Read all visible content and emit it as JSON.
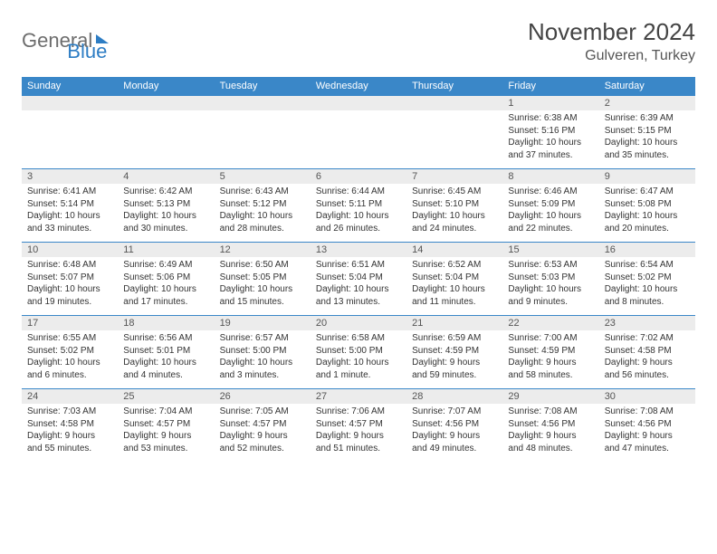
{
  "logo": {
    "word1": "General",
    "word2": "Blue"
  },
  "header": {
    "title": "November 2024",
    "location": "Gulveren, Turkey"
  },
  "days": [
    "Sunday",
    "Monday",
    "Tuesday",
    "Wednesday",
    "Thursday",
    "Friday",
    "Saturday"
  ],
  "style": {
    "header_bg": "#3a87c8",
    "header_text": "#ffffff",
    "daynum_bg": "#ececec",
    "font_small": 10,
    "font_daynum": 11
  },
  "weeks": [
    [
      {
        "n": "",
        "sr": "",
        "ss": "",
        "dl": ""
      },
      {
        "n": "",
        "sr": "",
        "ss": "",
        "dl": ""
      },
      {
        "n": "",
        "sr": "",
        "ss": "",
        "dl": ""
      },
      {
        "n": "",
        "sr": "",
        "ss": "",
        "dl": ""
      },
      {
        "n": "",
        "sr": "",
        "ss": "",
        "dl": ""
      },
      {
        "n": "1",
        "sr": "Sunrise: 6:38 AM",
        "ss": "Sunset: 5:16 PM",
        "dl": "Daylight: 10 hours and 37 minutes."
      },
      {
        "n": "2",
        "sr": "Sunrise: 6:39 AM",
        "ss": "Sunset: 5:15 PM",
        "dl": "Daylight: 10 hours and 35 minutes."
      }
    ],
    [
      {
        "n": "3",
        "sr": "Sunrise: 6:41 AM",
        "ss": "Sunset: 5:14 PM",
        "dl": "Daylight: 10 hours and 33 minutes."
      },
      {
        "n": "4",
        "sr": "Sunrise: 6:42 AM",
        "ss": "Sunset: 5:13 PM",
        "dl": "Daylight: 10 hours and 30 minutes."
      },
      {
        "n": "5",
        "sr": "Sunrise: 6:43 AM",
        "ss": "Sunset: 5:12 PM",
        "dl": "Daylight: 10 hours and 28 minutes."
      },
      {
        "n": "6",
        "sr": "Sunrise: 6:44 AM",
        "ss": "Sunset: 5:11 PM",
        "dl": "Daylight: 10 hours and 26 minutes."
      },
      {
        "n": "7",
        "sr": "Sunrise: 6:45 AM",
        "ss": "Sunset: 5:10 PM",
        "dl": "Daylight: 10 hours and 24 minutes."
      },
      {
        "n": "8",
        "sr": "Sunrise: 6:46 AM",
        "ss": "Sunset: 5:09 PM",
        "dl": "Daylight: 10 hours and 22 minutes."
      },
      {
        "n": "9",
        "sr": "Sunrise: 6:47 AM",
        "ss": "Sunset: 5:08 PM",
        "dl": "Daylight: 10 hours and 20 minutes."
      }
    ],
    [
      {
        "n": "10",
        "sr": "Sunrise: 6:48 AM",
        "ss": "Sunset: 5:07 PM",
        "dl": "Daylight: 10 hours and 19 minutes."
      },
      {
        "n": "11",
        "sr": "Sunrise: 6:49 AM",
        "ss": "Sunset: 5:06 PM",
        "dl": "Daylight: 10 hours and 17 minutes."
      },
      {
        "n": "12",
        "sr": "Sunrise: 6:50 AM",
        "ss": "Sunset: 5:05 PM",
        "dl": "Daylight: 10 hours and 15 minutes."
      },
      {
        "n": "13",
        "sr": "Sunrise: 6:51 AM",
        "ss": "Sunset: 5:04 PM",
        "dl": "Daylight: 10 hours and 13 minutes."
      },
      {
        "n": "14",
        "sr": "Sunrise: 6:52 AM",
        "ss": "Sunset: 5:04 PM",
        "dl": "Daylight: 10 hours and 11 minutes."
      },
      {
        "n": "15",
        "sr": "Sunrise: 6:53 AM",
        "ss": "Sunset: 5:03 PM",
        "dl": "Daylight: 10 hours and 9 minutes."
      },
      {
        "n": "16",
        "sr": "Sunrise: 6:54 AM",
        "ss": "Sunset: 5:02 PM",
        "dl": "Daylight: 10 hours and 8 minutes."
      }
    ],
    [
      {
        "n": "17",
        "sr": "Sunrise: 6:55 AM",
        "ss": "Sunset: 5:02 PM",
        "dl": "Daylight: 10 hours and 6 minutes."
      },
      {
        "n": "18",
        "sr": "Sunrise: 6:56 AM",
        "ss": "Sunset: 5:01 PM",
        "dl": "Daylight: 10 hours and 4 minutes."
      },
      {
        "n": "19",
        "sr": "Sunrise: 6:57 AM",
        "ss": "Sunset: 5:00 PM",
        "dl": "Daylight: 10 hours and 3 minutes."
      },
      {
        "n": "20",
        "sr": "Sunrise: 6:58 AM",
        "ss": "Sunset: 5:00 PM",
        "dl": "Daylight: 10 hours and 1 minute."
      },
      {
        "n": "21",
        "sr": "Sunrise: 6:59 AM",
        "ss": "Sunset: 4:59 PM",
        "dl": "Daylight: 9 hours and 59 minutes."
      },
      {
        "n": "22",
        "sr": "Sunrise: 7:00 AM",
        "ss": "Sunset: 4:59 PM",
        "dl": "Daylight: 9 hours and 58 minutes."
      },
      {
        "n": "23",
        "sr": "Sunrise: 7:02 AM",
        "ss": "Sunset: 4:58 PM",
        "dl": "Daylight: 9 hours and 56 minutes."
      }
    ],
    [
      {
        "n": "24",
        "sr": "Sunrise: 7:03 AM",
        "ss": "Sunset: 4:58 PM",
        "dl": "Daylight: 9 hours and 55 minutes."
      },
      {
        "n": "25",
        "sr": "Sunrise: 7:04 AM",
        "ss": "Sunset: 4:57 PM",
        "dl": "Daylight: 9 hours and 53 minutes."
      },
      {
        "n": "26",
        "sr": "Sunrise: 7:05 AM",
        "ss": "Sunset: 4:57 PM",
        "dl": "Daylight: 9 hours and 52 minutes."
      },
      {
        "n": "27",
        "sr": "Sunrise: 7:06 AM",
        "ss": "Sunset: 4:57 PM",
        "dl": "Daylight: 9 hours and 51 minutes."
      },
      {
        "n": "28",
        "sr": "Sunrise: 7:07 AM",
        "ss": "Sunset: 4:56 PM",
        "dl": "Daylight: 9 hours and 49 minutes."
      },
      {
        "n": "29",
        "sr": "Sunrise: 7:08 AM",
        "ss": "Sunset: 4:56 PM",
        "dl": "Daylight: 9 hours and 48 minutes."
      },
      {
        "n": "30",
        "sr": "Sunrise: 7:08 AM",
        "ss": "Sunset: 4:56 PM",
        "dl": "Daylight: 9 hours and 47 minutes."
      }
    ]
  ]
}
